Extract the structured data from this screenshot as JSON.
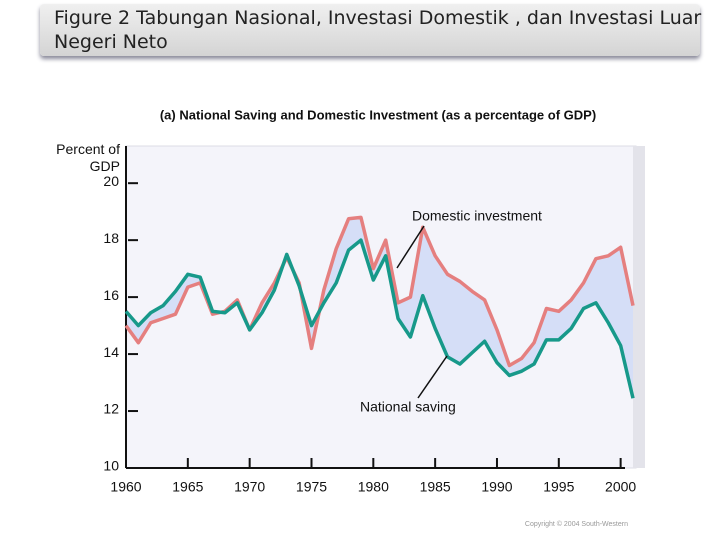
{
  "header": {
    "title": "Figure 2 Tabungan Nasional, Investasi Domestik , dan Investasi Luar Negeri Neto"
  },
  "chart_data": {
    "type": "line",
    "title": "(a) National Saving and Domestic Investment (as a percentage of GDP)",
    "y_label": "Percent of GDP",
    "x": [
      1960,
      1961,
      1962,
      1963,
      1964,
      1965,
      1966,
      1967,
      1968,
      1969,
      1970,
      1971,
      1972,
      1973,
      1974,
      1975,
      1976,
      1977,
      1978,
      1979,
      1980,
      1981,
      1982,
      1983,
      1984,
      1985,
      1986,
      1987,
      1988,
      1989,
      1990,
      1991,
      1992,
      1993,
      1994,
      1995,
      1996,
      1997,
      1998,
      1999,
      2000,
      2001
    ],
    "series": [
      {
        "name": "Domestic investment",
        "color": "#e57f7f",
        "values": [
          15.0,
          14.4,
          15.1,
          15.25,
          15.4,
          16.35,
          16.5,
          15.4,
          15.5,
          15.9,
          14.85,
          15.8,
          16.5,
          17.4,
          16.5,
          14.2,
          16.25,
          17.7,
          18.75,
          18.8,
          17.0,
          18.0,
          15.8,
          16.0,
          18.45,
          17.45,
          16.8,
          16.55,
          16.2,
          15.9,
          14.85,
          13.6,
          13.85,
          14.4,
          15.6,
          15.5,
          15.9,
          16.5,
          17.35,
          17.45,
          17.75,
          15.7
        ]
      },
      {
        "name": "National saving",
        "color": "#17998a",
        "values": [
          15.5,
          15.0,
          15.45,
          15.7,
          16.2,
          16.8,
          16.7,
          15.5,
          15.45,
          15.8,
          14.85,
          15.45,
          16.25,
          17.5,
          16.4,
          15.0,
          15.8,
          16.5,
          17.65,
          18.0,
          16.6,
          17.45,
          15.25,
          14.6,
          16.05,
          14.9,
          13.9,
          13.65,
          14.05,
          14.45,
          13.7,
          13.25,
          13.4,
          13.65,
          14.5,
          14.5,
          14.9,
          15.6,
          15.8,
          15.1,
          14.3,
          12.45
        ]
      }
    ],
    "fill_color": "#d5def7",
    "xlim": [
      1960,
      2001
    ],
    "xticks": [
      1960,
      1965,
      1970,
      1975,
      1980,
      1985,
      1990,
      1995,
      2000
    ],
    "ylim": [
      10,
      21.2
    ],
    "yticks": [
      10,
      12,
      14,
      16,
      18,
      20
    ],
    "copyright": "Copyright © 2004 South-Western"
  }
}
